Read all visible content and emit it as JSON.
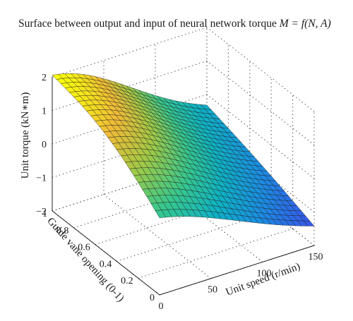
{
  "chart_data": {
    "type": "surface",
    "title": {
      "prefix": "Surface between output and input of neural network torque ",
      "formula": "M = f(N, A)"
    },
    "xlabel": "Unit speed (r/min)",
    "ylabel": "Guide vane opening (0-1)",
    "zlabel": "Unit torque (kN∗m)",
    "xlim": [
      0,
      150
    ],
    "ylim": [
      0,
      1
    ],
    "zlim": [
      -2,
      2
    ],
    "xticks": [
      "0",
      "50",
      "100",
      "150"
    ],
    "yticks": [
      "0",
      "0.2",
      "0.4",
      "0.6",
      "0.8",
      "1"
    ],
    "zticks": [
      "−2",
      "−1",
      "0",
      "1",
      "2"
    ],
    "grid": true,
    "colormap": "parula",
    "mesh": {
      "n_speed": 25,
      "n_opening": 25
    },
    "surface": {
      "description_points": [
        {
          "speed": 0,
          "opening": 1,
          "torque": 1.7
        },
        {
          "speed": 0,
          "opening": 0,
          "torque": -1.1
        },
        {
          "speed": 150,
          "opening": 1,
          "torque": -0.2
        },
        {
          "speed": 150,
          "opening": 0,
          "torque": -2.0
        }
      ]
    }
  }
}
